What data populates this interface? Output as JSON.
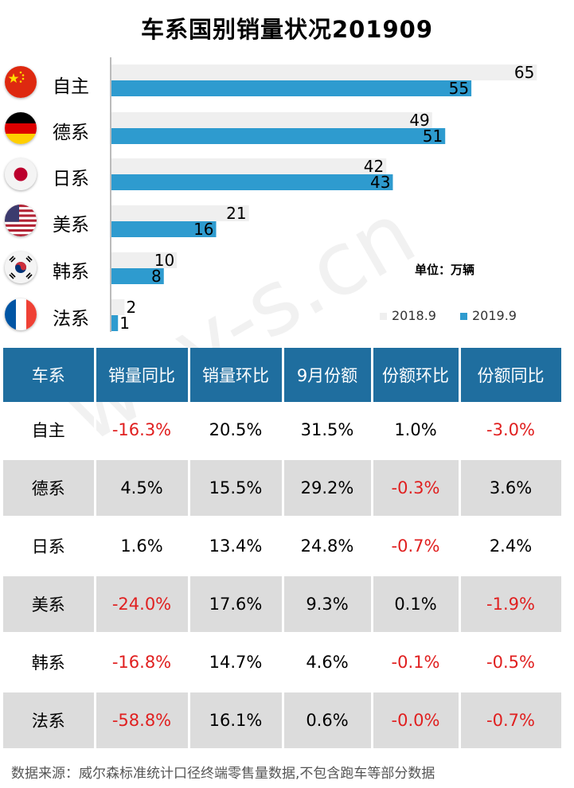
{
  "title": "车系国别销量状况201909",
  "unit_label": "单位：万辆",
  "watermark": "way-s.cn",
  "colors": {
    "series_2018": "#efefef",
    "series_2019": "#2e9bcf",
    "header_bg": "#1f6e9f",
    "negative": "#e02020"
  },
  "chart_data": {
    "type": "bar",
    "orientation": "horizontal",
    "categories": [
      "自主",
      "德系",
      "日系",
      "美系",
      "韩系",
      "法系"
    ],
    "flags": [
      "china-flag-icon",
      "germany-flag-icon",
      "japan-flag-icon",
      "usa-flag-icon",
      "korea-flag-icon",
      "france-flag-icon"
    ],
    "series": [
      {
        "name": "2018.9",
        "values": [
          65,
          49,
          42,
          21,
          10,
          2
        ]
      },
      {
        "name": "2019.9",
        "values": [
          55,
          51,
          43,
          16,
          8,
          1
        ]
      }
    ],
    "xlim": [
      0,
      70
    ],
    "legend": "bottom-right"
  },
  "table": {
    "headers": [
      "车系",
      "销量同比",
      "销量环比",
      "9月份额",
      "份额环比",
      "份额同比"
    ],
    "rows": [
      [
        "自主",
        "-16.3%",
        "20.5%",
        "31.5%",
        "1.0%",
        "-3.0%"
      ],
      [
        "德系",
        "4.5%",
        "15.5%",
        "29.2%",
        "-0.3%",
        "3.6%"
      ],
      [
        "日系",
        "1.6%",
        "13.4%",
        "24.8%",
        "-0.7%",
        "2.4%"
      ],
      [
        "美系",
        "-24.0%",
        "17.6%",
        "9.3%",
        "0.1%",
        "-1.9%"
      ],
      [
        "韩系",
        "-16.8%",
        "14.7%",
        "4.6%",
        "-0.1%",
        "-0.5%"
      ],
      [
        "法系",
        "-58.8%",
        "16.1%",
        "0.6%",
        "-0.0%",
        "-0.7%"
      ]
    ]
  },
  "source": "数据来源：威尔森标准统计口径终端零售量数据,不包含跑车等部分数据"
}
